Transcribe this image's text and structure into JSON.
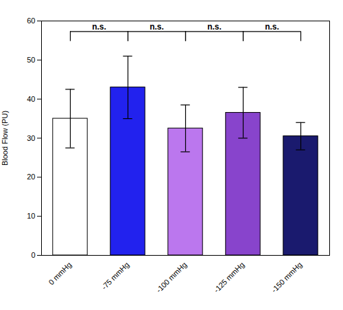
{
  "chart_data": {
    "type": "bar",
    "categories": [
      "0 mmHg",
      "-75 mmHg",
      "-100 mmHg",
      "-125 mmHg",
      "-150 mmHg"
    ],
    "values": [
      35.0,
      43.0,
      32.5,
      36.5,
      30.5
    ],
    "errors": [
      7.5,
      8.0,
      6.0,
      6.5,
      3.5
    ],
    "colors": [
      "#ffffff",
      "#2222ee",
      "#bb77ee",
      "#8844cc",
      "#1a1a6e"
    ],
    "ylabel": "Blood Flow (PU)",
    "ylim": [
      0,
      60
    ],
    "yticks": [
      0,
      10,
      20,
      30,
      40,
      50,
      60
    ],
    "significance_brackets": [
      {
        "x1": "0 mmHg",
        "x2": "-75 mmHg",
        "label": "n.s."
      },
      {
        "x1": "-75 mmHg",
        "x2": "-100 mmHg",
        "label": "n.s."
      },
      {
        "x1": "-100 mmHg",
        "x2": "-125 mmHg",
        "label": "n.s."
      },
      {
        "x1": "-125 mmHg",
        "x2": "-150 mmHg",
        "label": "n.s."
      }
    ]
  }
}
